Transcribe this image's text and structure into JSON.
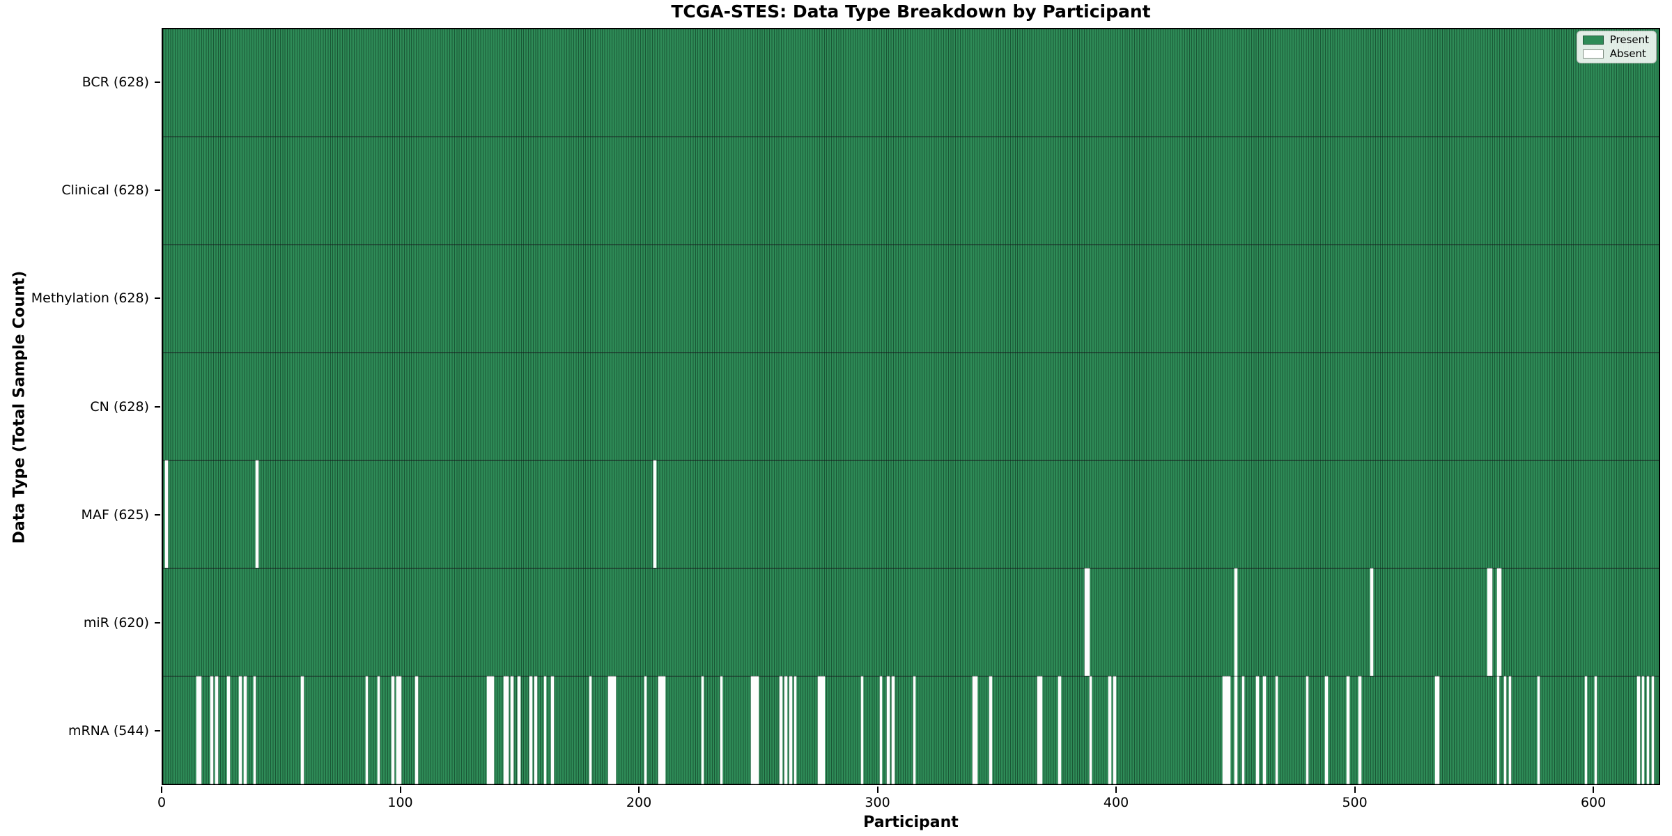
{
  "title": "TCGA-STES: Data Type Breakdown by Participant",
  "xaxis": {
    "label": "Participant"
  },
  "yaxis": {
    "label": "Data Type (Total Sample Count)"
  },
  "legend": {
    "present_label": "Present",
    "absent_label": "Absent"
  },
  "colors": {
    "present": "#2E8B57",
    "absent": "#fdfdfd",
    "cell_edge": "rgba(5,35,20,0.5)",
    "spine": "#000000"
  },
  "chart_data": {
    "type": "heatmap",
    "title": "TCGA-STES: Data Type Breakdown by Participant",
    "xlabel": "Participant",
    "ylabel": "Data Type (Total Sample Count)",
    "legend_entries": [
      "Present",
      "Absent"
    ],
    "legend_position": "upper right",
    "grid": false,
    "n_participants": 628,
    "x_ticks": [
      0,
      100,
      200,
      300,
      400,
      500,
      600
    ],
    "xlim": [
      0,
      628
    ],
    "value_encoding": {
      "present": 1,
      "absent": 0
    },
    "series": [
      {
        "name": "BCR",
        "total": 628,
        "label": "BCR (628)",
        "absent": []
      },
      {
        "name": "Clinical",
        "total": 628,
        "label": "Clinical (628)",
        "absent": []
      },
      {
        "name": "Methylation",
        "total": 628,
        "label": "Methylation (628)",
        "absent": []
      },
      {
        "name": "CN",
        "total": 628,
        "label": "CN (628)",
        "absent": []
      },
      {
        "name": "MAF",
        "total": 625,
        "label": "MAF (625)",
        "absent": [
          1,
          39,
          206
        ]
      },
      {
        "name": "miR",
        "total": 620,
        "label": "miR (620)",
        "absent": [
          387,
          388,
          450,
          507,
          556,
          557,
          560,
          561
        ]
      },
      {
        "name": "mRNA",
        "total": 544,
        "label": "mRNA (544)",
        "absent": [
          14,
          15,
          20,
          22,
          27,
          32,
          34,
          38,
          58,
          85,
          90,
          96,
          98,
          99,
          106,
          136,
          137,
          138,
          143,
          144,
          146,
          149,
          154,
          156,
          160,
          163,
          179,
          187,
          188,
          189,
          202,
          208,
          209,
          210,
          226,
          234,
          247,
          248,
          249,
          259,
          261,
          263,
          265,
          275,
          276,
          277,
          293,
          301,
          304,
          306,
          315,
          340,
          341,
          347,
          367,
          368,
          376,
          389,
          397,
          399,
          445,
          446,
          447,
          450,
          453,
          459,
          462,
          467,
          480,
          488,
          497,
          502,
          534,
          535,
          560,
          563,
          565,
          577,
          597,
          601,
          619,
          621,
          623,
          625
        ]
      }
    ]
  }
}
